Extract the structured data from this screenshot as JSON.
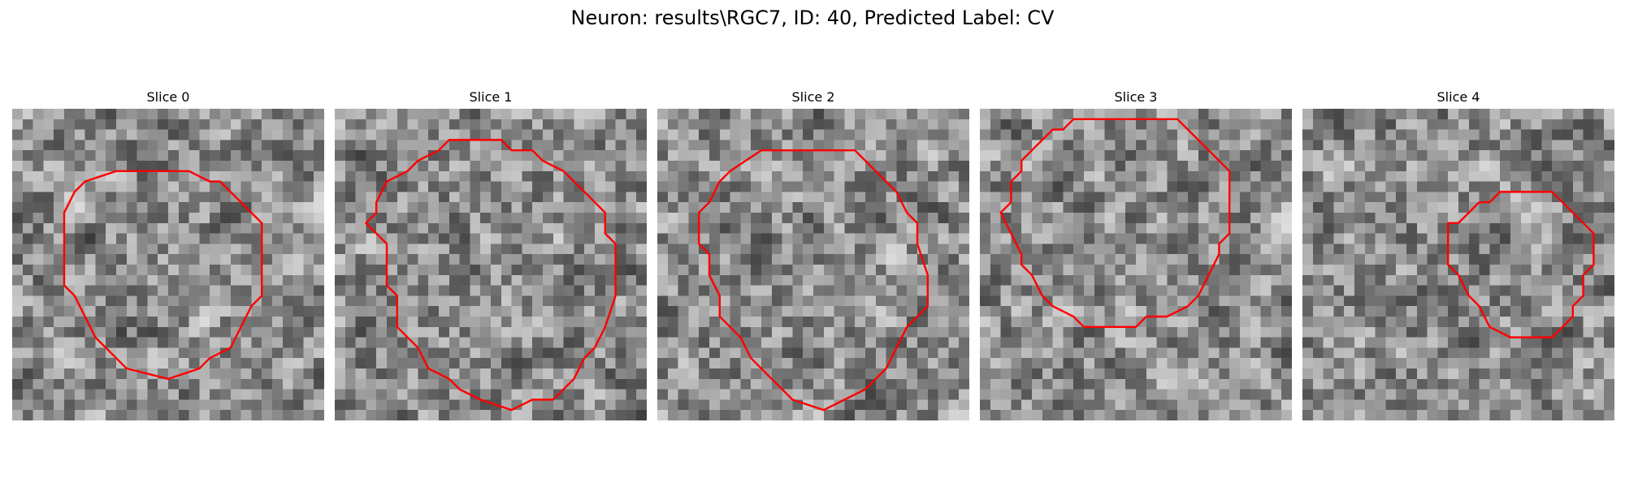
{
  "figure": {
    "title": "Neuron: results\\RGC7, ID: 40, Predicted Label: CV"
  },
  "overlay_color": "#ff0000",
  "slices": [
    {
      "title": "Slice 0",
      "grid": 30,
      "contour": [
        [
          17,
          6
        ],
        [
          10,
          6
        ],
        [
          7,
          7
        ],
        [
          6,
          8
        ],
        [
          5,
          10
        ],
        [
          5,
          17
        ],
        [
          6,
          18
        ],
        [
          7,
          20
        ],
        [
          8,
          22
        ],
        [
          9,
          23
        ],
        [
          10,
          24
        ],
        [
          11,
          25
        ],
        [
          15,
          26
        ],
        [
          18,
          25
        ],
        [
          19,
          24
        ],
        [
          21,
          23
        ],
        [
          22,
          21
        ],
        [
          23,
          19
        ],
        [
          24,
          18
        ],
        [
          24,
          11
        ],
        [
          23,
          10
        ],
        [
          22,
          9
        ],
        [
          20,
          7
        ],
        [
          19,
          7
        ]
      ]
    },
    {
      "title": "Slice 1",
      "grid": 30,
      "contour": [
        [
          12,
          3
        ],
        [
          11,
          3
        ],
        [
          10,
          4
        ],
        [
          8,
          5
        ],
        [
          7,
          6
        ],
        [
          5,
          7
        ],
        [
          4,
          9
        ],
        [
          4,
          10
        ],
        [
          3,
          11
        ],
        [
          5,
          13
        ],
        [
          5,
          17
        ],
        [
          6,
          18
        ],
        [
          6,
          21
        ],
        [
          7,
          22
        ],
        [
          8,
          23
        ],
        [
          9,
          25
        ],
        [
          11,
          26
        ],
        [
          12,
          27
        ],
        [
          14,
          28
        ],
        [
          17,
          29
        ],
        [
          19,
          28
        ],
        [
          21,
          28
        ],
        [
          23,
          26
        ],
        [
          24,
          24
        ],
        [
          25,
          23
        ],
        [
          26,
          21
        ],
        [
          27,
          18
        ],
        [
          27,
          13
        ],
        [
          26,
          12
        ],
        [
          26,
          10
        ],
        [
          25,
          9
        ],
        [
          24,
          8
        ],
        [
          22,
          6
        ],
        [
          20,
          5
        ],
        [
          19,
          4
        ],
        [
          17,
          4
        ],
        [
          16,
          3
        ],
        [
          15,
          3
        ]
      ]
    },
    {
      "title": "Slice 2",
      "grid": 30,
      "contour": [
        [
          10,
          4
        ],
        [
          7,
          6
        ],
        [
          6,
          7
        ],
        [
          5,
          9
        ],
        [
          4,
          10
        ],
        [
          4,
          13
        ],
        [
          5,
          14
        ],
        [
          5,
          16
        ],
        [
          6,
          18
        ],
        [
          6,
          20
        ],
        [
          7,
          21
        ],
        [
          8,
          22
        ],
        [
          9,
          24
        ],
        [
          11,
          26
        ],
        [
          12,
          27
        ],
        [
          13,
          28
        ],
        [
          16,
          29
        ],
        [
          18,
          28
        ],
        [
          20,
          27
        ],
        [
          22,
          25
        ],
        [
          23,
          23
        ],
        [
          24,
          21
        ],
        [
          25,
          20
        ],
        [
          26,
          19
        ],
        [
          26,
          16
        ],
        [
          25,
          13
        ],
        [
          25,
          11
        ],
        [
          24,
          10
        ],
        [
          23,
          8
        ],
        [
          22,
          7
        ],
        [
          21,
          6
        ],
        [
          20,
          5
        ],
        [
          19,
          4
        ],
        [
          17,
          4
        ],
        [
          16,
          4
        ],
        [
          14,
          4
        ]
      ]
    },
    {
      "title": "Slice 3",
      "grid": 30,
      "contour": [
        [
          11,
          1
        ],
        [
          9,
          1
        ],
        [
          8,
          2
        ],
        [
          7,
          2
        ],
        [
          6,
          3
        ],
        [
          5,
          4
        ],
        [
          4,
          5
        ],
        [
          4,
          6
        ],
        [
          3,
          7
        ],
        [
          3,
          9
        ],
        [
          2,
          10
        ],
        [
          3,
          12
        ],
        [
          4,
          14
        ],
        [
          4,
          15
        ],
        [
          5,
          16
        ],
        [
          6,
          18
        ],
        [
          7,
          19
        ],
        [
          9,
          20
        ],
        [
          10,
          21
        ],
        [
          11,
          21
        ],
        [
          15,
          21
        ],
        [
          16,
          20
        ],
        [
          18,
          20
        ],
        [
          20,
          19
        ],
        [
          21,
          18
        ],
        [
          22,
          16
        ],
        [
          23,
          14
        ],
        [
          23,
          13
        ],
        [
          24,
          12
        ],
        [
          24,
          6
        ],
        [
          22,
          4
        ],
        [
          21,
          3
        ],
        [
          20,
          2
        ],
        [
          19,
          1
        ],
        [
          17,
          1
        ],
        [
          15,
          1
        ],
        [
          14,
          1
        ],
        [
          13,
          1
        ]
      ]
    },
    {
      "title": "Slice 4",
      "grid": 30,
      "contour": [
        [
          22,
          8
        ],
        [
          19,
          8
        ],
        [
          18,
          9
        ],
        [
          17,
          9
        ],
        [
          16,
          10
        ],
        [
          15,
          11
        ],
        [
          14,
          11
        ],
        [
          14,
          15
        ],
        [
          15,
          16
        ],
        [
          16,
          18
        ],
        [
          17,
          19
        ],
        [
          18,
          21
        ],
        [
          20,
          22
        ],
        [
          24,
          22
        ],
        [
          25,
          21
        ],
        [
          26,
          20
        ],
        [
          26,
          19
        ],
        [
          27,
          18
        ],
        [
          27,
          16
        ],
        [
          28,
          15
        ],
        [
          28,
          12
        ],
        [
          27,
          11
        ],
        [
          26,
          10
        ],
        [
          25,
          9
        ],
        [
          24,
          8
        ]
      ]
    }
  ]
}
